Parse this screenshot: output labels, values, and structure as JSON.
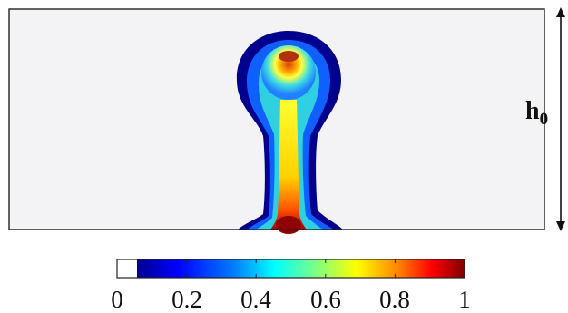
{
  "diagram": {
    "height_label": {
      "symbol": "h",
      "subscript": "0"
    }
  },
  "colorbar": {
    "colormap": "jet",
    "low_color": "#ffffff",
    "colors": [
      "#00008f",
      "#0000ff",
      "#0080ff",
      "#00ffff",
      "#80ff80",
      "#ffff00",
      "#ff8000",
      "#ff0000",
      "#800000"
    ],
    "tick_labels": [
      "0",
      "0.2",
      "0.4",
      "0.6",
      "0.8",
      "1"
    ],
    "range": [
      0,
      1
    ]
  },
  "colors": {
    "domain_background": "#f3f3f6",
    "frame": "#222222"
  }
}
